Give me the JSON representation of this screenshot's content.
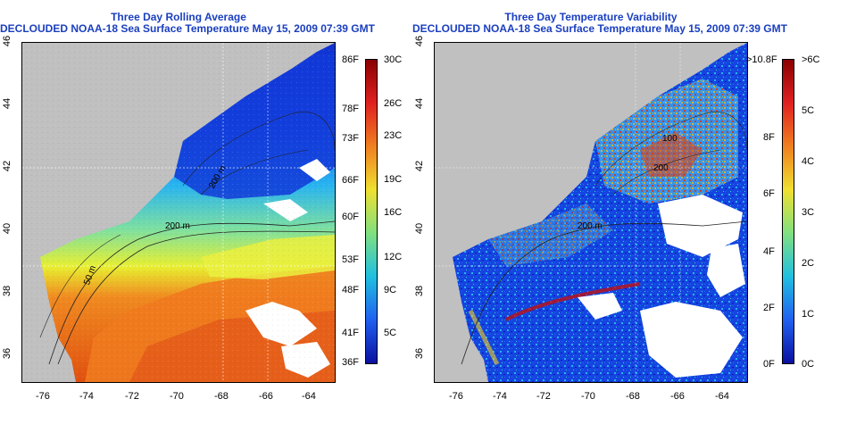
{
  "panels": [
    {
      "title_line1": "Three Day Rolling Average",
      "title_line2": "DECLOUDED NOAA-18 Sea Surface Temperature May 15, 2009 07:39 GMT",
      "x_ticks": [
        "-76",
        "-74",
        "-72",
        "-70",
        "-68",
        "-66",
        "-64"
      ],
      "y_ticks": [
        "46",
        "44",
        "42",
        "40",
        "38",
        "36"
      ],
      "contour_labels": [
        "200 m",
        "200 m",
        "50 m"
      ],
      "colorbar_left_labels": [
        "86F",
        "78F",
        "73F",
        "66F",
        "60F",
        "53F",
        "48F",
        "41F",
        "36F"
      ],
      "colorbar_right_labels": [
        "30C",
        "26C",
        "23C",
        "19C",
        "16C",
        "12C",
        "9C",
        "5C"
      ]
    },
    {
      "title_line1": "Three Day Temperature Variability",
      "title_line2": "DECLOUDED NOAA-18 Sea Surface Temperature May 15, 2009 07:39 GMT",
      "x_ticks": [
        "-76",
        "-74",
        "-72",
        "-70",
        "-68",
        "-66",
        "-64"
      ],
      "y_ticks": [
        "46",
        "44",
        "42",
        "40",
        "38",
        "36"
      ],
      "contour_labels": [
        "200 m",
        "200",
        "100"
      ],
      "colorbar_left_labels": [
        ">10.8F",
        "8F",
        "6F",
        "4F",
        "2F",
        "0F"
      ],
      "colorbar_right_labels": [
        ">6C",
        "5C",
        "4C",
        "3C",
        "2C",
        "1C",
        "0C"
      ]
    }
  ],
  "colors": {
    "title": "#1a3fbf",
    "land": "#c0c0c0",
    "cloud": "#ffffff"
  }
}
